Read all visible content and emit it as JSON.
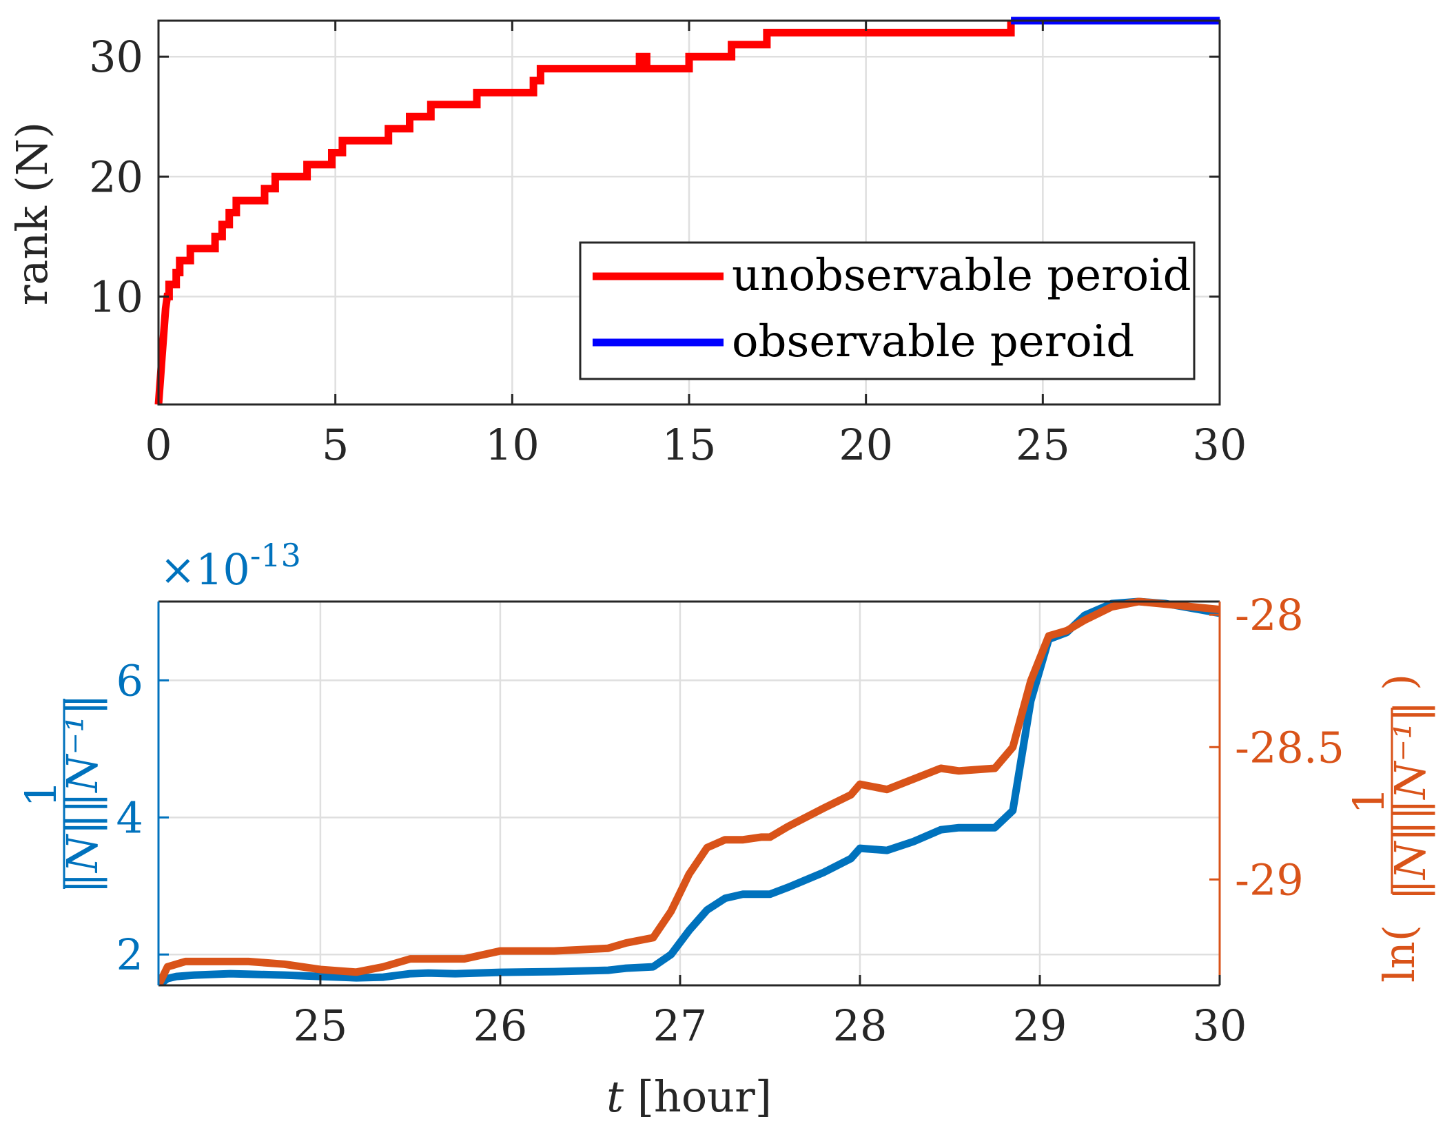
{
  "chart_data": [
    {
      "type": "line",
      "id": "top",
      "ylabel": "rank (N)",
      "xlim": [
        0,
        30
      ],
      "ylim": [
        1,
        33
      ],
      "xticks": [
        "0",
        "5",
        "10",
        "15",
        "20",
        "25",
        "30"
      ],
      "xtick_values": [
        0,
        5,
        10,
        15,
        20,
        25,
        30
      ],
      "yticks": [
        "10",
        "20",
        "30"
      ],
      "ytick_values": [
        10,
        20,
        30
      ],
      "grid": true,
      "legend": {
        "placement": "bottom-right"
      },
      "series": [
        {
          "name": "unobservable peroid",
          "color": "#FF0000",
          "x": [
            0,
            0.05,
            0.1,
            0.15,
            0.2,
            0.25,
            0.3,
            0.3,
            0.5,
            0.5,
            0.6,
            0.6,
            0.9,
            0.9,
            1.6,
            1.6,
            1.8,
            1.8,
            2.0,
            2.0,
            2.2,
            2.2,
            2.4,
            2.4,
            3.0,
            3.0,
            3.3,
            3.3,
            4.2,
            4.2,
            4.9,
            4.9,
            5.2,
            5.2,
            6.5,
            6.5,
            7.1,
            7.1,
            7.7,
            7.7,
            9.0,
            9.0,
            10.6,
            10.6,
            10.8,
            10.8,
            13.6,
            13.6,
            13.8,
            13.8,
            15.0,
            15.0,
            16.2,
            16.2,
            17.2,
            17.2,
            24.1,
            24.1
          ],
          "y": [
            1,
            3,
            5,
            7,
            9,
            10,
            10,
            11,
            11,
            12,
            12,
            13,
            13,
            14,
            14,
            15,
            15,
            16,
            16,
            17,
            17,
            18,
            18,
            18,
            18,
            19,
            19,
            20,
            20,
            21,
            21,
            22,
            22,
            23,
            23,
            24,
            24,
            25,
            25,
            26,
            26,
            27,
            27,
            28,
            28,
            29,
            29,
            30,
            30,
            29,
            29,
            30,
            30,
            31,
            31,
            32,
            32,
            33
          ]
        },
        {
          "name": "observable peroid",
          "color": "#0000FF",
          "x": [
            24.1,
            30
          ],
          "y": [
            33,
            33
          ]
        }
      ]
    },
    {
      "type": "line",
      "id": "bottom",
      "xlabel_italic": "t",
      "xlabel_rest": " [hour]",
      "ylabel_left": "1/(||N|| ||N⁻¹||)",
      "ylabel_left_num": "1",
      "ylabel_left_den": "‖N‖‖N⁻¹‖",
      "ylabel_right": "ln(1/(||N|| ||N⁻¹||))",
      "ylabel_right_prefix": "ln(",
      "ylabel_right_num": "1",
      "ylabel_right_den": "‖N‖‖N⁻¹‖",
      "ylabel_right_suffix": ")",
      "exponent_label": "×10",
      "exponent_power": "-13",
      "xlim": [
        24.1,
        30
      ],
      "xticks": [
        "25",
        "26",
        "27",
        "28",
        "29",
        "30"
      ],
      "xtick_values": [
        25,
        26,
        27,
        28,
        29,
        30
      ],
      "ylim_left": [
        1.55,
        7.15
      ],
      "yticks_left": [
        "2",
        "4",
        "6"
      ],
      "ytick_values_left": [
        2,
        4,
        6
      ],
      "ylim_right": [
        -29.4,
        -27.95
      ],
      "yticks_right": [
        "-28",
        "-28.5",
        "-29"
      ],
      "ytick_values_right": [
        -28,
        -28.5,
        -29
      ],
      "grid": true,
      "series": [
        {
          "name": "1/(||N|| ||N^-1||)",
          "axis": "left",
          "color": "#0072BD",
          "x": [
            24.1,
            24.15,
            24.2,
            24.3,
            24.5,
            24.8,
            25.0,
            25.2,
            25.35,
            25.5,
            25.6,
            25.75,
            26.0,
            26.3,
            26.6,
            26.7,
            26.85,
            26.95,
            27.05,
            27.15,
            27.25,
            27.35,
            27.5,
            27.6,
            27.8,
            27.95,
            28.0,
            28.15,
            28.3,
            28.45,
            28.55,
            28.75,
            28.85,
            28.95,
            29.05,
            29.15,
            29.25,
            29.4,
            29.55,
            29.7,
            29.85,
            30.0
          ],
          "y": [
            1.55,
            1.65,
            1.68,
            1.7,
            1.72,
            1.7,
            1.68,
            1.66,
            1.67,
            1.72,
            1.73,
            1.72,
            1.74,
            1.75,
            1.77,
            1.8,
            1.82,
            2.0,
            2.35,
            2.65,
            2.82,
            2.88,
            2.88,
            2.98,
            3.2,
            3.4,
            3.55,
            3.52,
            3.65,
            3.82,
            3.85,
            3.85,
            4.1,
            5.7,
            6.6,
            6.7,
            6.95,
            7.12,
            7.15,
            7.12,
            7.05,
            6.98
          ]
        },
        {
          "name": "ln(1/(||N|| ||N^-1||))",
          "axis": "right",
          "color": "#D95319",
          "x": [
            24.1,
            24.15,
            24.25,
            24.4,
            24.6,
            24.8,
            25.0,
            25.2,
            25.35,
            25.5,
            25.65,
            25.8,
            26.0,
            26.3,
            26.6,
            26.7,
            26.85,
            26.95,
            27.05,
            27.15,
            27.25,
            27.35,
            27.45,
            27.5,
            27.6,
            27.8,
            27.95,
            28.0,
            28.15,
            28.3,
            28.45,
            28.55,
            28.75,
            28.85,
            28.95,
            29.05,
            29.15,
            29.25,
            29.4,
            29.55,
            29.7,
            29.85,
            30.0
          ],
          "y": [
            -29.4,
            -29.33,
            -29.31,
            -29.31,
            -29.31,
            -29.32,
            -29.34,
            -29.35,
            -29.33,
            -29.3,
            -29.3,
            -29.3,
            -29.27,
            -29.27,
            -29.26,
            -29.24,
            -29.22,
            -29.12,
            -28.98,
            -28.88,
            -28.85,
            -28.85,
            -28.84,
            -28.84,
            -28.8,
            -28.73,
            -28.68,
            -28.64,
            -28.66,
            -28.62,
            -28.58,
            -28.59,
            -28.58,
            -28.5,
            -28.25,
            -28.08,
            -28.06,
            -28.02,
            -27.97,
            -27.95,
            -27.96,
            -27.97,
            -27.98
          ]
        }
      ]
    }
  ]
}
